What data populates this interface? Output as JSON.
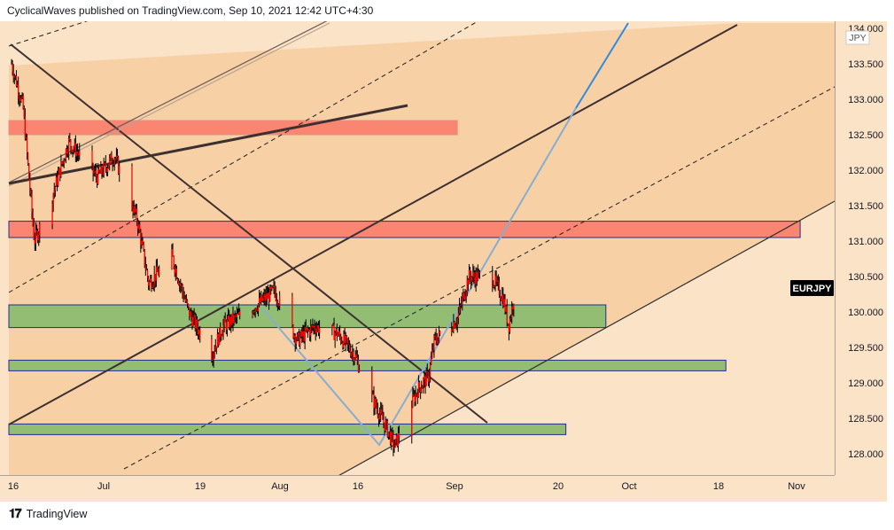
{
  "header": {
    "text": "CyclicalWaves published on TradingView.com, Sep 10, 2021 12:42 UTC+4:30"
  },
  "footer": {
    "brand": "TradingView",
    "logo_icon": "tradingview-logo-icon"
  },
  "symbol_badge": "EURJPY",
  "currency_label": "JPY",
  "colors": {
    "background_light": "#fbe3c8",
    "background_dark": "#f6cda0",
    "candle": "#ff0000",
    "wick": "#000000",
    "green_zone": "#94bd74",
    "red_zone": "#fa8570",
    "zone_border": "#1c2f8c",
    "trend_line": "#3c3030",
    "projection_blue": "#2f8be0",
    "projection_light_blue": "#87aed0",
    "badge_bg": "#000000"
  },
  "chart_data": {
    "type": "candlestick",
    "symbol": "EURJPY",
    "x_ticks": [
      "16",
      "Jul",
      "19",
      "Aug",
      "16",
      "Sep",
      "20",
      "Oct",
      "18",
      "Nov"
    ],
    "y_ticks": [
      "128.000",
      "128.500",
      "129.000",
      "129.500",
      "130.000",
      "130.500",
      "131.000",
      "131.500",
      "132.000",
      "132.500",
      "133.000",
      "133.500",
      "134.000"
    ],
    "ylim": [
      127.7,
      134.1
    ],
    "last_price": 130.25,
    "date_range": [
      "2021-06-14",
      "2021-09-10"
    ],
    "approx_close_path": [
      {
        "date": "2021-06-14",
        "close": 133.5
      },
      {
        "date": "2021-06-16",
        "close": 132.9
      },
      {
        "date": "2021-06-18",
        "close": 131.0
      },
      {
        "date": "2021-06-21",
        "close": 131.6
      },
      {
        "date": "2021-06-24",
        "close": 132.4
      },
      {
        "date": "2021-06-29",
        "close": 131.9
      },
      {
        "date": "2021-07-02",
        "close": 132.2
      },
      {
        "date": "2021-07-06",
        "close": 131.3
      },
      {
        "date": "2021-07-08",
        "close": 130.4
      },
      {
        "date": "2021-07-12",
        "close": 130.8
      },
      {
        "date": "2021-07-15",
        "close": 130.0
      },
      {
        "date": "2021-07-19",
        "close": 129.4
      },
      {
        "date": "2021-07-21",
        "close": 129.8
      },
      {
        "date": "2021-07-27",
        "close": 130.1
      },
      {
        "date": "2021-07-30",
        "close": 130.3
      },
      {
        "date": "2021-08-03",
        "close": 129.6
      },
      {
        "date": "2021-08-06",
        "close": 129.8
      },
      {
        "date": "2021-08-10",
        "close": 129.7
      },
      {
        "date": "2021-08-13",
        "close": 129.4
      },
      {
        "date": "2021-08-16",
        "close": 128.8
      },
      {
        "date": "2021-08-19",
        "close": 128.3
      },
      {
        "date": "2021-08-20",
        "close": 128.1
      },
      {
        "date": "2021-08-24",
        "close": 128.9
      },
      {
        "date": "2021-08-26",
        "close": 129.1
      },
      {
        "date": "2021-08-27",
        "close": 129.6
      },
      {
        "date": "2021-08-31",
        "close": 129.9
      },
      {
        "date": "2021-09-02",
        "close": 130.5
      },
      {
        "date": "2021-09-06",
        "close": 130.5
      },
      {
        "date": "2021-09-08",
        "close": 130.2
      },
      {
        "date": "2021-09-09",
        "close": 129.8
      },
      {
        "date": "2021-09-10",
        "close": 130.25
      }
    ],
    "zones": [
      {
        "kind": "red",
        "from": 132.5,
        "to": 132.7,
        "start": "2021-06-14",
        "end": "2021-08-31"
      },
      {
        "kind": "red",
        "from": 131.05,
        "to": 131.28,
        "start": "2021-06-14",
        "end": "2021-10-30"
      },
      {
        "kind": "green",
        "from": 129.78,
        "to": 130.1,
        "start": "2021-06-14",
        "end": "2021-09-26"
      },
      {
        "kind": "green",
        "from": 129.17,
        "to": 129.32,
        "start": "2021-06-14",
        "end": "2021-10-17"
      },
      {
        "kind": "green",
        "from": 128.27,
        "to": 128.42,
        "start": "2021-06-14",
        "end": "2021-09-19"
      }
    ],
    "grid": false,
    "legend": "none"
  }
}
